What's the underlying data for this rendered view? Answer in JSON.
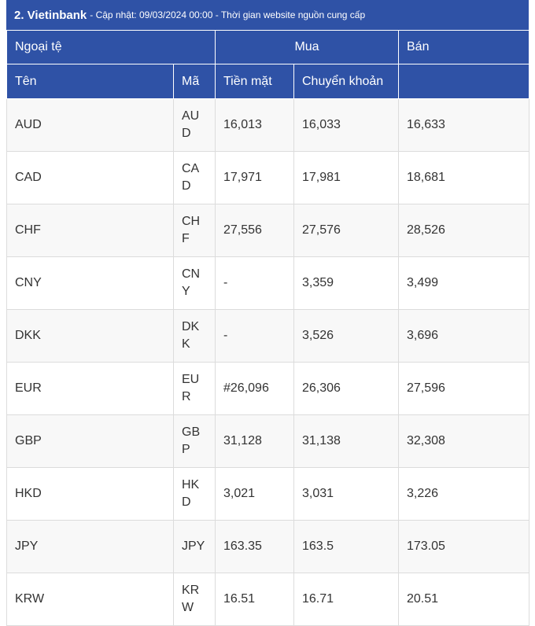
{
  "header": {
    "title": "2. Vietinbank",
    "subtitle": "- Cập nhật: 09/03/2024 00:00 - Thời gian website nguồn cung cấp"
  },
  "table": {
    "group_header": [
      "Ngoại tệ",
      "Mua",
      "Bán"
    ],
    "columns": [
      "Tên",
      "Mã",
      "Tiền mặt",
      "Chuyển khoản"
    ],
    "rows": [
      [
        "AUD",
        "AUD",
        "16,013",
        "16,033",
        "16,633"
      ],
      [
        "CAD",
        "CAD",
        "17,971",
        "17,981",
        "18,681"
      ],
      [
        "CHF",
        "CHF",
        "27,556",
        "27,576",
        "28,526"
      ],
      [
        "CNY",
        "CNY",
        "-",
        "3,359",
        "3,499"
      ],
      [
        "DKK",
        "DKK",
        "-",
        "3,526",
        "3,696"
      ],
      [
        "EUR",
        "EUR",
        "#26,096",
        "26,306",
        "27,596"
      ],
      [
        "GBP",
        "GBP",
        "31,128",
        "31,138",
        "32,308"
      ],
      [
        "HKD",
        "HKD",
        "3,021",
        "3,031",
        "3,226"
      ],
      [
        "JPY",
        "JPY",
        "163.35",
        "163.5",
        "173.05"
      ],
      [
        "KRW",
        "KRW",
        "16.51",
        "16.71",
        "20.51"
      ]
    ]
  }
}
